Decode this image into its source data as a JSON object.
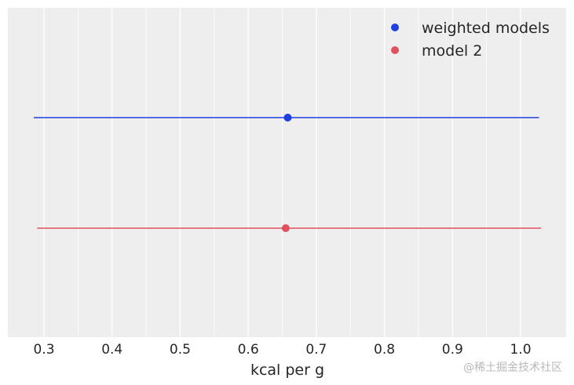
{
  "chart_data": {
    "type": "scatter",
    "title": "",
    "xlabel": "kcal per g",
    "ylabel": "",
    "xlim": [
      0.25,
      1.07
    ],
    "xticks": [
      0.3,
      0.4,
      0.5,
      0.6,
      0.7,
      0.8,
      0.9,
      1.0
    ],
    "xtick_labels": [
      "0.3",
      "0.4",
      "0.5",
      "0.6",
      "0.7",
      "0.8",
      "0.9",
      "1.0"
    ],
    "grid": true,
    "legend_position": "top-right",
    "series": [
      {
        "name": "weighted models",
        "color": "#1f3fe0",
        "mean": 0.658,
        "low": 0.285,
        "high": 1.027
      },
      {
        "name": "model 2",
        "color": "#e0505f",
        "mean": 0.655,
        "low": 0.29,
        "high": 1.03
      }
    ]
  },
  "watermark": "@稀土掘金技术社区"
}
